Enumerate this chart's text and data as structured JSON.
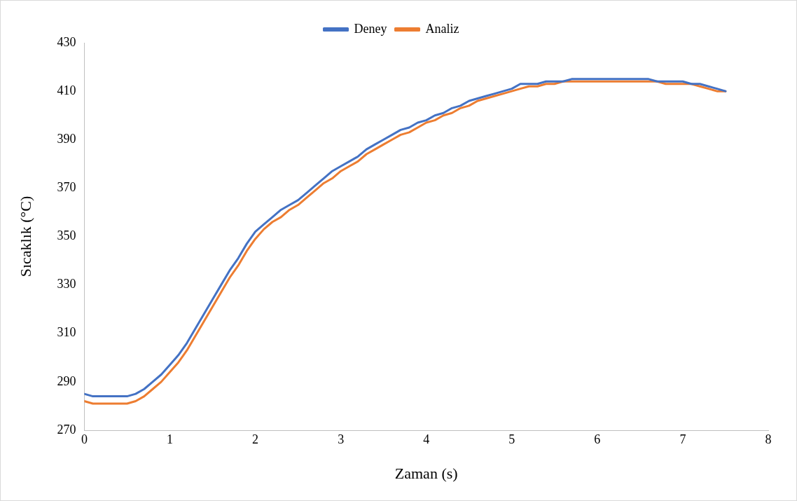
{
  "chart_data": {
    "type": "line",
    "xlabel": "Zaman (s)",
    "ylabel": "Sıcaklık (°C)",
    "x": [
      0,
      0.1,
      0.2,
      0.3,
      0.4,
      0.5,
      0.6,
      0.7,
      0.8,
      0.9,
      1,
      1.1,
      1.2,
      1.3,
      1.4,
      1.5,
      1.6,
      1.7,
      1.8,
      1.9,
      2,
      2.1,
      2.2,
      2.3,
      2.4,
      2.5,
      2.6,
      2.7,
      2.8,
      2.9,
      3,
      3.1,
      3.2,
      3.3,
      3.4,
      3.5,
      3.6,
      3.7,
      3.8,
      3.9,
      4,
      4.1,
      4.2,
      4.3,
      4.4,
      4.5,
      4.6,
      4.7,
      4.8,
      4.9,
      5,
      5.1,
      5.2,
      5.3,
      5.4,
      5.5,
      5.6,
      5.7,
      5.8,
      5.9,
      6,
      6.1,
      6.2,
      6.3,
      6.4,
      6.5,
      6.6,
      6.7,
      6.8,
      6.9,
      7,
      7.1,
      7.2,
      7.3,
      7.4,
      7.5
    ],
    "series": [
      {
        "name": "Deney",
        "color": "#4472c4",
        "values": [
          285,
          284,
          284,
          284,
          284,
          284,
          285,
          287,
          290,
          293,
          297,
          301,
          306,
          312,
          318,
          324,
          330,
          336,
          341,
          347,
          352,
          355,
          358,
          361,
          363,
          365,
          368,
          371,
          374,
          377,
          379,
          381,
          383,
          386,
          388,
          390,
          392,
          394,
          395,
          397,
          398,
          400,
          401,
          403,
          404,
          406,
          407,
          408,
          409,
          410,
          411,
          413,
          413,
          413,
          414,
          414,
          414,
          415,
          415,
          415,
          415,
          415,
          415,
          415,
          415,
          415,
          415,
          414,
          414,
          414,
          414,
          413,
          413,
          412,
          411,
          410
        ]
      },
      {
        "name": "Analiz",
        "color": "#ed7d31",
        "values": [
          282,
          281,
          281,
          281,
          281,
          281,
          282,
          284,
          287,
          290,
          294,
          298,
          303,
          309,
          315,
          321,
          327,
          333,
          338,
          344,
          349,
          353,
          356,
          358,
          361,
          363,
          366,
          369,
          372,
          374,
          377,
          379,
          381,
          384,
          386,
          388,
          390,
          392,
          393,
          395,
          397,
          398,
          400,
          401,
          403,
          404,
          406,
          407,
          408,
          409,
          410,
          411,
          412,
          412,
          413,
          413,
          414,
          414,
          414,
          414,
          414,
          414,
          414,
          414,
          414,
          414,
          414,
          414,
          413,
          413,
          413,
          413,
          412,
          411,
          410,
          410
        ]
      }
    ],
    "xlim": [
      0,
      8
    ],
    "xticks": [
      0,
      1,
      2,
      3,
      4,
      5,
      6,
      7,
      8
    ],
    "ylim": [
      270,
      430
    ],
    "yticks": [
      270,
      290,
      310,
      330,
      350,
      370,
      390,
      410,
      430
    ],
    "grid": false,
    "legend": "top",
    "marker": "none",
    "line_style": "solid"
  }
}
